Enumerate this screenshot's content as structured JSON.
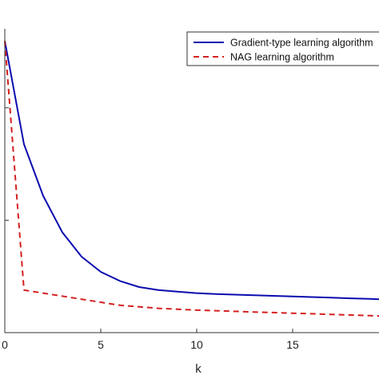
{
  "chart_data": {
    "type": "line",
    "xlabel": "k",
    "ylabel": "",
    "xlim": [
      0,
      19.5
    ],
    "ylim": [
      0,
      1
    ],
    "grid": false,
    "legend_position": "top-right",
    "xticks": [
      {
        "value": 0,
        "label": "0"
      },
      {
        "value": 5,
        "label": "5"
      },
      {
        "value": 10,
        "label": "10"
      },
      {
        "value": 15,
        "label": "15"
      }
    ],
    "yticks": [
      0.0,
      0.37,
      0.74
    ],
    "x": [
      0,
      1,
      2,
      3,
      4,
      5,
      6,
      7,
      8,
      9,
      10,
      11,
      12,
      13,
      14,
      15,
      16,
      17,
      18,
      19,
      19.5
    ],
    "series": [
      {
        "name": "Gradient-type learning algorithm",
        "color": "#0b0baf",
        "dash": "solid",
        "values": [
          0.96,
          0.62,
          0.45,
          0.33,
          0.25,
          0.2,
          0.17,
          0.15,
          0.14,
          0.135,
          0.13,
          0.127,
          0.125,
          0.123,
          0.121,
          0.119,
          0.117,
          0.115,
          0.113,
          0.111,
          0.11
        ]
      },
      {
        "name": "NAG learning algorithm",
        "color": "#d42020",
        "dash": "dashed",
        "values": [
          0.96,
          0.14,
          0.13,
          0.12,
          0.11,
          0.1,
          0.09,
          0.085,
          0.08,
          0.077,
          0.074,
          0.072,
          0.07,
          0.068,
          0.066,
          0.064,
          0.062,
          0.06,
          0.058,
          0.056,
          0.055
        ]
      }
    ]
  }
}
